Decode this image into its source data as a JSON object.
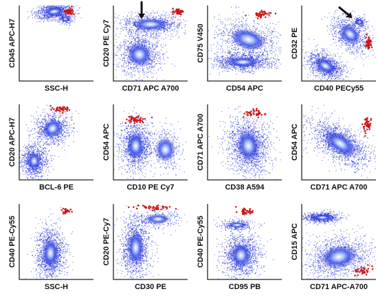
{
  "chart_data": [
    {
      "type": "scatter",
      "panel": "1-1",
      "xlabel": "SSC-H",
      "ylabel": "CD45 APC-H7",
      "populations": [
        {
          "color": "#1f2bd6",
          "shape": "ellipse",
          "cx": 0.47,
          "cy": 0.92,
          "rx": 0.26,
          "ry": 0.11,
          "rot": -8,
          "n": 900
        },
        {
          "color": "#1f2bd6",
          "shape": "ellipse",
          "cx": 0.62,
          "cy": 0.82,
          "rx": 0.1,
          "ry": 0.07,
          "rot": 0,
          "n": 200
        },
        {
          "color": "#cc1111",
          "shape": "ellipse",
          "cx": 0.67,
          "cy": 0.92,
          "rx": 0.07,
          "ry": 0.04,
          "rot": 0,
          "n": 40
        }
      ]
    },
    {
      "type": "scatter",
      "panel": "1-2",
      "xlabel": "CD71   APC   A700",
      "ylabel": "CD20 PE Cy7",
      "annotation": "arrow-down",
      "populations": [
        {
          "color": "#1f2bd6",
          "shape": "ellipse",
          "cx": 0.5,
          "cy": 0.75,
          "rx": 0.45,
          "ry": 0.15,
          "rot": 0,
          "n": 900
        },
        {
          "color": "#1f2bd6",
          "shape": "ellipse",
          "cx": 0.35,
          "cy": 0.35,
          "rx": 0.3,
          "ry": 0.28,
          "rot": 20,
          "n": 1100
        },
        {
          "color": "#cc1111",
          "shape": "ellipse",
          "cx": 0.87,
          "cy": 0.92,
          "rx": 0.07,
          "ry": 0.04,
          "rot": 0,
          "n": 40
        }
      ]
    },
    {
      "type": "scatter",
      "panel": "1-3",
      "xlabel": "CD54   APC",
      "ylabel": "CD75 V450",
      "populations": [
        {
          "color": "#1f2bd6",
          "shape": "ellipse",
          "cx": 0.48,
          "cy": 0.25,
          "rx": 0.4,
          "ry": 0.12,
          "rot": 0,
          "n": 1100
        },
        {
          "color": "#1f2bd6",
          "shape": "ellipse",
          "cx": 0.55,
          "cy": 0.55,
          "rx": 0.45,
          "ry": 0.25,
          "rot": 15,
          "n": 900
        },
        {
          "color": "#cc1111",
          "shape": "ellipse",
          "cx": 0.72,
          "cy": 0.88,
          "rx": 0.14,
          "ry": 0.04,
          "rot": -10,
          "n": 40
        }
      ]
    },
    {
      "type": "scatter",
      "panel": "1-4",
      "xlabel": "CD40   PECy55",
      "ylabel": "CD32 PE",
      "annotation": "arrow-down-right",
      "populations": [
        {
          "color": "#1f2bd6",
          "shape": "ellipse",
          "cx": 0.32,
          "cy": 0.2,
          "rx": 0.28,
          "ry": 0.16,
          "rot": 30,
          "n": 1100
        },
        {
          "color": "#1f2bd6",
          "shape": "ellipse",
          "cx": 0.65,
          "cy": 0.62,
          "rx": 0.3,
          "ry": 0.2,
          "rot": 45,
          "n": 800
        },
        {
          "color": "#1f2bd6",
          "shape": "ellipse",
          "cx": 0.78,
          "cy": 0.78,
          "rx": 0.09,
          "ry": 0.07,
          "rot": 0,
          "n": 200
        },
        {
          "color": "#cc1111",
          "shape": "ellipse",
          "cx": 0.9,
          "cy": 0.5,
          "rx": 0.04,
          "ry": 0.1,
          "rot": 0,
          "n": 45
        }
      ]
    },
    {
      "type": "scatter",
      "panel": "2-1",
      "xlabel": "BCL-6   PE",
      "ylabel": "CD20 APC-H7",
      "populations": [
        {
          "color": "#1f2bd6",
          "shape": "ellipse",
          "cx": 0.2,
          "cy": 0.25,
          "rx": 0.17,
          "ry": 0.22,
          "rot": 0,
          "n": 900
        },
        {
          "color": "#1f2bd6",
          "shape": "ellipse",
          "cx": 0.45,
          "cy": 0.68,
          "rx": 0.22,
          "ry": 0.25,
          "rot": 60,
          "n": 900
        },
        {
          "color": "#cc1111",
          "shape": "ellipse",
          "cx": 0.55,
          "cy": 0.94,
          "rx": 0.13,
          "ry": 0.04,
          "rot": 0,
          "n": 40
        }
      ]
    },
    {
      "type": "scatter",
      "panel": "2-2",
      "xlabel": "CD10   PE   Cy7",
      "ylabel": "CD54 APC",
      "populations": [
        {
          "color": "#1f2bd6",
          "shape": "ellipse",
          "cx": 0.3,
          "cy": 0.45,
          "rx": 0.22,
          "ry": 0.32,
          "rot": 0,
          "n": 1300
        },
        {
          "color": "#1f2bd6",
          "shape": "ellipse",
          "cx": 0.7,
          "cy": 0.4,
          "rx": 0.25,
          "ry": 0.3,
          "rot": 0,
          "n": 350
        },
        {
          "color": "#cc1111",
          "shape": "ellipse",
          "cx": 0.3,
          "cy": 0.8,
          "rx": 0.13,
          "ry": 0.06,
          "rot": 0,
          "n": 45
        }
      ]
    },
    {
      "type": "scatter",
      "panel": "2-3",
      "xlabel": "CD38   A594",
      "ylabel": "CD71 APC A700",
      "populations": [
        {
          "color": "#1f2bd6",
          "shape": "ellipse",
          "cx": 0.55,
          "cy": 0.45,
          "rx": 0.28,
          "ry": 0.38,
          "rot": -10,
          "n": 1600
        },
        {
          "color": "#cc1111",
          "shape": "ellipse",
          "cx": 0.62,
          "cy": 0.88,
          "rx": 0.13,
          "ry": 0.05,
          "rot": 0,
          "n": 40
        }
      ]
    },
    {
      "type": "scatter",
      "panel": "2-4",
      "xlabel": "CD71   APC   A700",
      "ylabel": "CD54 APC",
      "populations": [
        {
          "color": "#1f2bd6",
          "shape": "ellipse",
          "cx": 0.52,
          "cy": 0.48,
          "rx": 0.45,
          "ry": 0.22,
          "rot": 35,
          "n": 1600
        },
        {
          "color": "#cc1111",
          "shape": "ellipse",
          "cx": 0.88,
          "cy": 0.72,
          "rx": 0.05,
          "ry": 0.1,
          "rot": 0,
          "n": 45
        }
      ]
    },
    {
      "type": "scatter",
      "panel": "3-1",
      "xlabel": "SSC-H",
      "ylabel": "CD40 PE-Cy55",
      "populations": [
        {
          "color": "#1f2bd6",
          "shape": "ellipse",
          "cx": 0.42,
          "cy": 0.35,
          "rx": 0.2,
          "ry": 0.35,
          "rot": 0,
          "n": 1400
        },
        {
          "color": "#cc1111",
          "shape": "ellipse",
          "cx": 0.62,
          "cy": 0.9,
          "rx": 0.09,
          "ry": 0.04,
          "rot": 0,
          "n": 25
        }
      ]
    },
    {
      "type": "scatter",
      "panel": "3-2",
      "xlabel": "CD30   PE",
      "ylabel": "CD20 PE-Cy7",
      "populations": [
        {
          "color": "#1f2bd6",
          "shape": "ellipse",
          "cx": 0.3,
          "cy": 0.42,
          "rx": 0.2,
          "ry": 0.4,
          "rot": 0,
          "n": 1300
        },
        {
          "color": "#1f2bd6",
          "shape": "ellipse",
          "cx": 0.6,
          "cy": 0.8,
          "rx": 0.3,
          "ry": 0.12,
          "rot": 0,
          "n": 300
        },
        {
          "color": "#cc1111",
          "shape": "ellipse",
          "cx": 0.55,
          "cy": 0.95,
          "rx": 0.25,
          "ry": 0.04,
          "rot": 0,
          "n": 40
        }
      ]
    },
    {
      "type": "scatter",
      "panel": "3-3",
      "xlabel": "CD95   PB",
      "ylabel": "CD40 PE-Cy55",
      "populations": [
        {
          "color": "#1f2bd6",
          "shape": "ellipse",
          "cx": 0.45,
          "cy": 0.32,
          "rx": 0.25,
          "ry": 0.3,
          "rot": 0,
          "n": 1300
        },
        {
          "color": "#1f2bd6",
          "shape": "ellipse",
          "cx": 0.4,
          "cy": 0.72,
          "rx": 0.25,
          "ry": 0.07,
          "rot": 0,
          "n": 300
        },
        {
          "color": "#cc1111",
          "shape": "ellipse",
          "cx": 0.52,
          "cy": 0.9,
          "rx": 0.12,
          "ry": 0.04,
          "rot": 0,
          "n": 35
        }
      ]
    },
    {
      "type": "scatter",
      "panel": "3-4",
      "xlabel": "CD71   APC-A700",
      "ylabel": "CD15 APC",
      "populations": [
        {
          "color": "#1f2bd6",
          "shape": "ellipse",
          "cx": 0.28,
          "cy": 0.82,
          "rx": 0.24,
          "ry": 0.07,
          "rot": 0,
          "n": 700
        },
        {
          "color": "#1f2bd6",
          "shape": "ellipse",
          "cx": 0.5,
          "cy": 0.3,
          "rx": 0.45,
          "ry": 0.28,
          "rot": -10,
          "n": 1300
        },
        {
          "color": "#cc1111",
          "shape": "ellipse",
          "cx": 0.85,
          "cy": 0.12,
          "rx": 0.12,
          "ry": 0.08,
          "rot": 0,
          "n": 35
        }
      ]
    }
  ]
}
